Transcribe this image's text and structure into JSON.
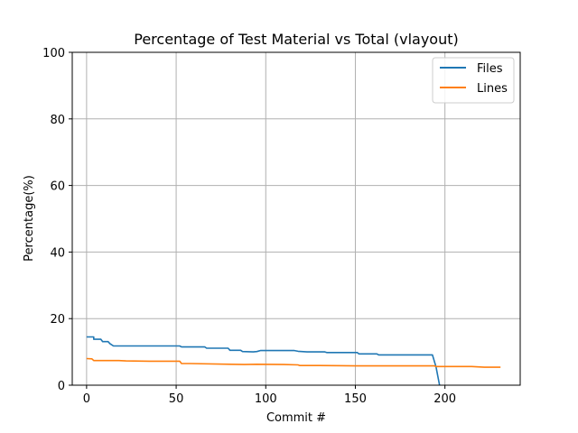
{
  "chart_data": {
    "type": "line",
    "title": "Percentage of Test Material vs Total (vlayout)",
    "xlabel": "Commit #",
    "ylabel": "Percentage(%)",
    "xlim": [
      -8,
      242
    ],
    "ylim": [
      0,
      100
    ],
    "xticks": [
      0,
      50,
      100,
      150,
      200
    ],
    "yticks": [
      0,
      20,
      40,
      60,
      80,
      100
    ],
    "grid": true,
    "legend_position": "top-right",
    "series": [
      {
        "name": "Files",
        "color": "#1f77b4",
        "points": [
          [
            0,
            14.5
          ],
          [
            4,
            14.5
          ],
          [
            4,
            13.8
          ],
          [
            8,
            13.8
          ],
          [
            9,
            13.1
          ],
          [
            12,
            13.1
          ],
          [
            13,
            12.5
          ],
          [
            15,
            11.8
          ],
          [
            52,
            11.8
          ],
          [
            53,
            11.5
          ],
          [
            66,
            11.5
          ],
          [
            67,
            11.1
          ],
          [
            79,
            11.1
          ],
          [
            80,
            10.5
          ],
          [
            86,
            10.5
          ],
          [
            87,
            10.1
          ],
          [
            93,
            10.0
          ],
          [
            95,
            10.1
          ],
          [
            97,
            10.4
          ],
          [
            116,
            10.4
          ],
          [
            118,
            10.2
          ],
          [
            123,
            10.0
          ],
          [
            133,
            10.0
          ],
          [
            134,
            9.8
          ],
          [
            151,
            9.8
          ],
          [
            152,
            9.4
          ],
          [
            162,
            9.4
          ],
          [
            163,
            9.1
          ],
          [
            193,
            9.1
          ],
          [
            195,
            5.5
          ],
          [
            197,
            0
          ]
        ]
      },
      {
        "name": "Lines",
        "color": "#ff7f0e",
        "points": [
          [
            0,
            8.0
          ],
          [
            3,
            7.9
          ],
          [
            4,
            7.4
          ],
          [
            18,
            7.4
          ],
          [
            22,
            7.3
          ],
          [
            35,
            7.2
          ],
          [
            52,
            7.2
          ],
          [
            53,
            6.5
          ],
          [
            58,
            6.5
          ],
          [
            80,
            6.3
          ],
          [
            88,
            6.2
          ],
          [
            95,
            6.3
          ],
          [
            110,
            6.2
          ],
          [
            118,
            6.1
          ],
          [
            119,
            5.9
          ],
          [
            130,
            5.9
          ],
          [
            150,
            5.8
          ],
          [
            170,
            5.8
          ],
          [
            194,
            5.8
          ],
          [
            195,
            5.6
          ],
          [
            215,
            5.6
          ],
          [
            222,
            5.4
          ],
          [
            231,
            5.4
          ]
        ]
      }
    ]
  }
}
